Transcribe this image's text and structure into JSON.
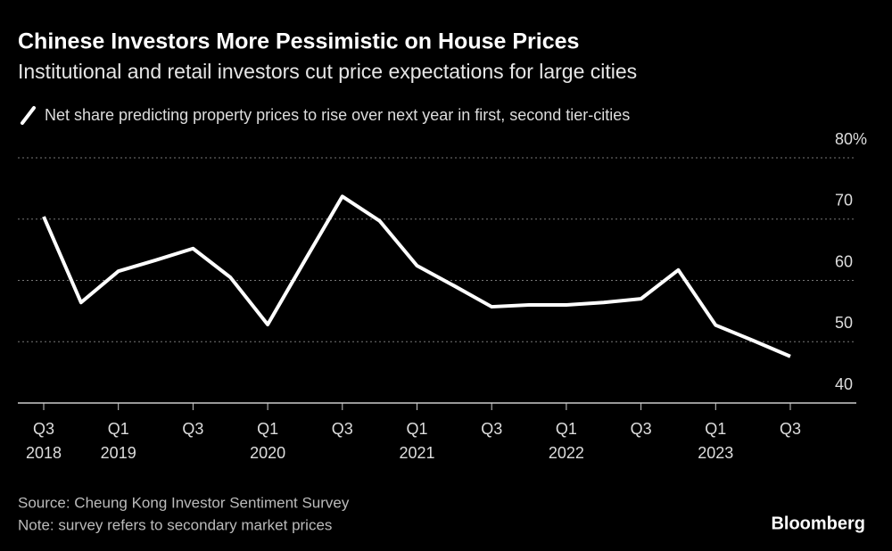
{
  "chart_data": {
    "type": "line",
    "title": "Chinese Investors More Pessimistic on House Prices",
    "subtitle": "Institutional and retail investors cut price expectations for large cities",
    "categories": [
      "Q3",
      null,
      "Q1",
      null,
      "Q3",
      null,
      "Q1",
      null,
      "Q3",
      null,
      "Q1",
      null,
      "Q3",
      null,
      "Q1",
      null,
      "Q3",
      null,
      "Q1",
      null,
      "Q3"
    ],
    "x_year_labels": [
      "2018",
      null,
      "2019",
      null,
      null,
      null,
      "2020",
      null,
      null,
      null,
      "2021",
      null,
      null,
      null,
      "2022",
      null,
      null,
      null,
      "2023",
      null,
      null
    ],
    "series": [
      {
        "name": "Net share predicting property prices to rise over next year in first, second tier-cities",
        "color": "#ffffff",
        "values": [
          70.4,
          56.4,
          61.5,
          63.3,
          65.2,
          60.5,
          52.8,
          63.3,
          73.7,
          69.7,
          62.4,
          59.1,
          55.7,
          56.0,
          56.0,
          56.4,
          57.0,
          61.7,
          52.7,
          50.2,
          47.6
        ]
      }
    ],
    "ylim": [
      40,
      80
    ],
    "yticks": [
      40,
      50,
      60,
      70,
      {
        "value": 80,
        "label": "80%"
      }
    ],
    "grid": true,
    "source": "Source: Cheung Kong Investor Sentiment Survey",
    "note": "Note: survey refers to secondary market prices",
    "brand": "Bloomberg"
  }
}
